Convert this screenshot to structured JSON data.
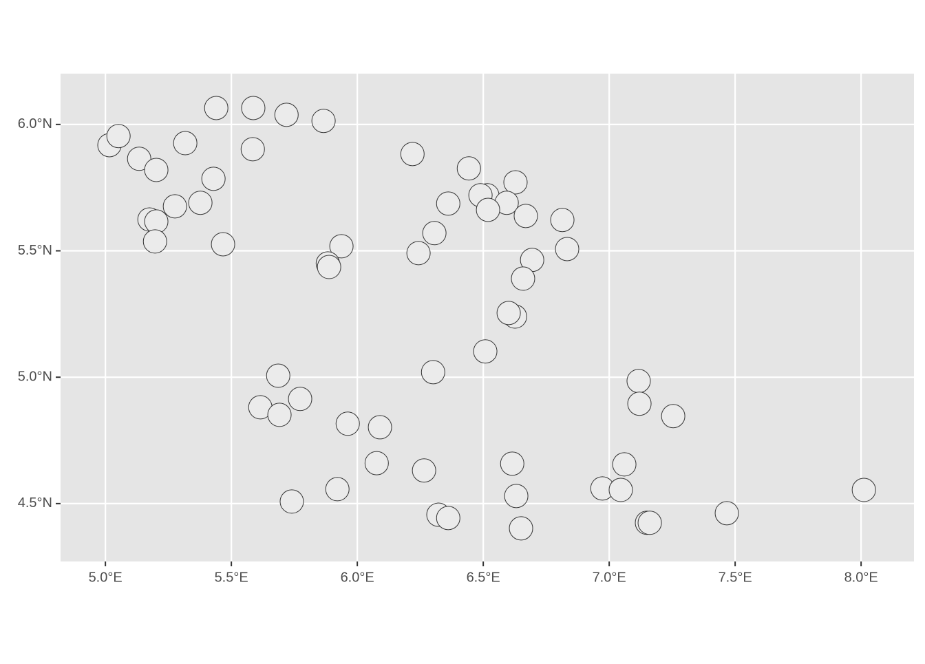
{
  "chart_data": {
    "type": "scatter",
    "x": [
      5.016,
      5.052,
      5.134,
      5.202,
      5.317,
      5.44,
      5.587,
      5.719,
      5.866,
      5.585,
      5.429,
      5.377,
      5.276,
      5.175,
      5.202,
      5.197,
      5.467,
      5.937,
      5.883,
      5.888,
      6.219,
      6.443,
      6.628,
      6.516,
      6.489,
      6.593,
      6.519,
      6.361,
      6.669,
      6.814,
      6.306,
      6.243,
      6.833,
      6.694,
      6.658,
      6.626,
      6.601,
      6.508,
      6.301,
      5.686,
      5.773,
      5.615,
      5.691,
      5.962,
      6.09,
      6.077,
      6.265,
      5.921,
      5.74,
      6.322,
      6.361,
      6.615,
      6.631,
      6.65,
      7.117,
      7.12,
      7.254,
      7.06,
      6.973,
      7.046,
      7.15,
      7.161,
      7.467,
      8.011
    ],
    "values": [
      5.918,
      5.954,
      5.864,
      5.82,
      5.926,
      6.065,
      6.065,
      6.038,
      6.014,
      5.902,
      5.785,
      5.69,
      5.676,
      5.624,
      5.616,
      5.537,
      5.526,
      5.518,
      5.45,
      5.436,
      5.883,
      5.826,
      5.771,
      5.72,
      5.72,
      5.69,
      5.662,
      5.687,
      5.638,
      5.622,
      5.57,
      5.491,
      5.507,
      5.464,
      5.39,
      5.24,
      5.254,
      5.102,
      5.02,
      5.006,
      4.914,
      4.881,
      4.851,
      4.816,
      4.802,
      4.66,
      4.631,
      4.557,
      4.508,
      4.456,
      4.443,
      4.658,
      4.53,
      4.402,
      4.985,
      4.895,
      4.846,
      4.655,
      4.56,
      4.554,
      4.424,
      4.424,
      4.462,
      4.554
    ],
    "color": "#ebebeb",
    "xlim": [
      4.822,
      8.21
    ],
    "ylim": [
      4.271,
      6.201
    ],
    "xticks": [
      {
        "value": 5.0,
        "label": "5.0°E"
      },
      {
        "value": 5.5,
        "label": "5.5°E"
      },
      {
        "value": 6.0,
        "label": "6.0°E"
      },
      {
        "value": 6.5,
        "label": "6.5°E"
      },
      {
        "value": 7.0,
        "label": "7.0°E"
      },
      {
        "value": 7.5,
        "label": "7.5°E"
      },
      {
        "value": 8.0,
        "label": "8.0°E"
      }
    ],
    "yticks": [
      {
        "value": 4.5,
        "label": "4.5°N"
      },
      {
        "value": 5.0,
        "label": "5.0°N"
      },
      {
        "value": 5.5,
        "label": "5.5°N"
      },
      {
        "value": 6.0,
        "label": "6.0°N"
      }
    ],
    "grid": true
  }
}
